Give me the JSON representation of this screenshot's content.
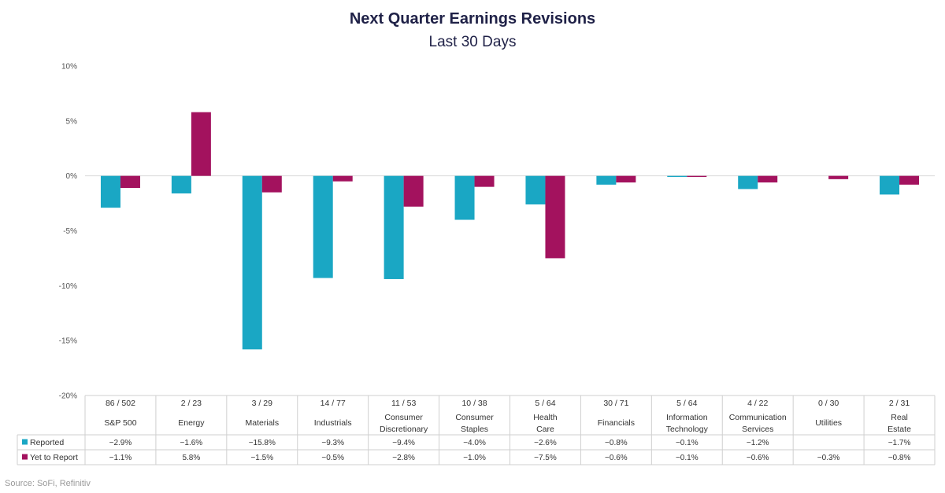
{
  "chart_data": {
    "type": "bar",
    "title": "Next Quarter Earnings Revisions",
    "subtitle": "Last 30 Days",
    "ylim": [
      -20,
      10
    ],
    "yticks": [
      10,
      5,
      0,
      -5,
      -10,
      -15,
      -20
    ],
    "ytick_labels": [
      "10%",
      "5%",
      "0%",
      "-5%",
      "-10%",
      "-15%",
      "-20%"
    ],
    "categories": [
      {
        "counts": "86 / 502",
        "name": "S&P 500"
      },
      {
        "counts": "2 / 23",
        "name": "Energy"
      },
      {
        "counts": "3 / 29",
        "name": "Materials"
      },
      {
        "counts": "14 / 77",
        "name": "Industrials"
      },
      {
        "counts": "11 / 53",
        "name": "Consumer Discretionary"
      },
      {
        "counts": "10 / 38",
        "name": "Consumer Staples"
      },
      {
        "counts": "5 / 64",
        "name": "Health Care"
      },
      {
        "counts": "30 / 71",
        "name": "Financials"
      },
      {
        "counts": "5 / 64",
        "name": "Information Technology"
      },
      {
        "counts": "4 / 22",
        "name": "Communication Services"
      },
      {
        "counts": "0 / 30",
        "name": "Utilities"
      },
      {
        "counts": "2 / 31",
        "name": "Real Estate"
      }
    ],
    "series": [
      {
        "name": "Reported",
        "color": "#1aa7c4",
        "values": [
          -2.9,
          -1.6,
          -15.8,
          -9.3,
          -9.4,
          -4.0,
          -2.6,
          -0.8,
          -0.1,
          -1.2,
          null,
          -1.7
        ],
        "labels": [
          "−2.9%",
          "−1.6%",
          "−15.8%",
          "−9.3%",
          "−9.4%",
          "−4.0%",
          "−2.6%",
          "−0.8%",
          "−0.1%",
          "−1.2%",
          "",
          "−1.7%"
        ]
      },
      {
        "name": "Yet to Report",
        "color": "#a3125e",
        "values": [
          -1.1,
          5.8,
          -1.5,
          -0.5,
          -2.8,
          -1.0,
          -7.5,
          -0.6,
          -0.1,
          -0.6,
          -0.3,
          -0.8
        ],
        "labels": [
          "−1.1%",
          "5.8%",
          "−1.5%",
          "−0.5%",
          "−2.8%",
          "−1.0%",
          "−7.5%",
          "−0.6%",
          "−0.1%",
          "−0.6%",
          "−0.3%",
          "−0.8%"
        ]
      }
    ],
    "legend": "data-table"
  },
  "source": "Source: SoFi, Refinitiv"
}
